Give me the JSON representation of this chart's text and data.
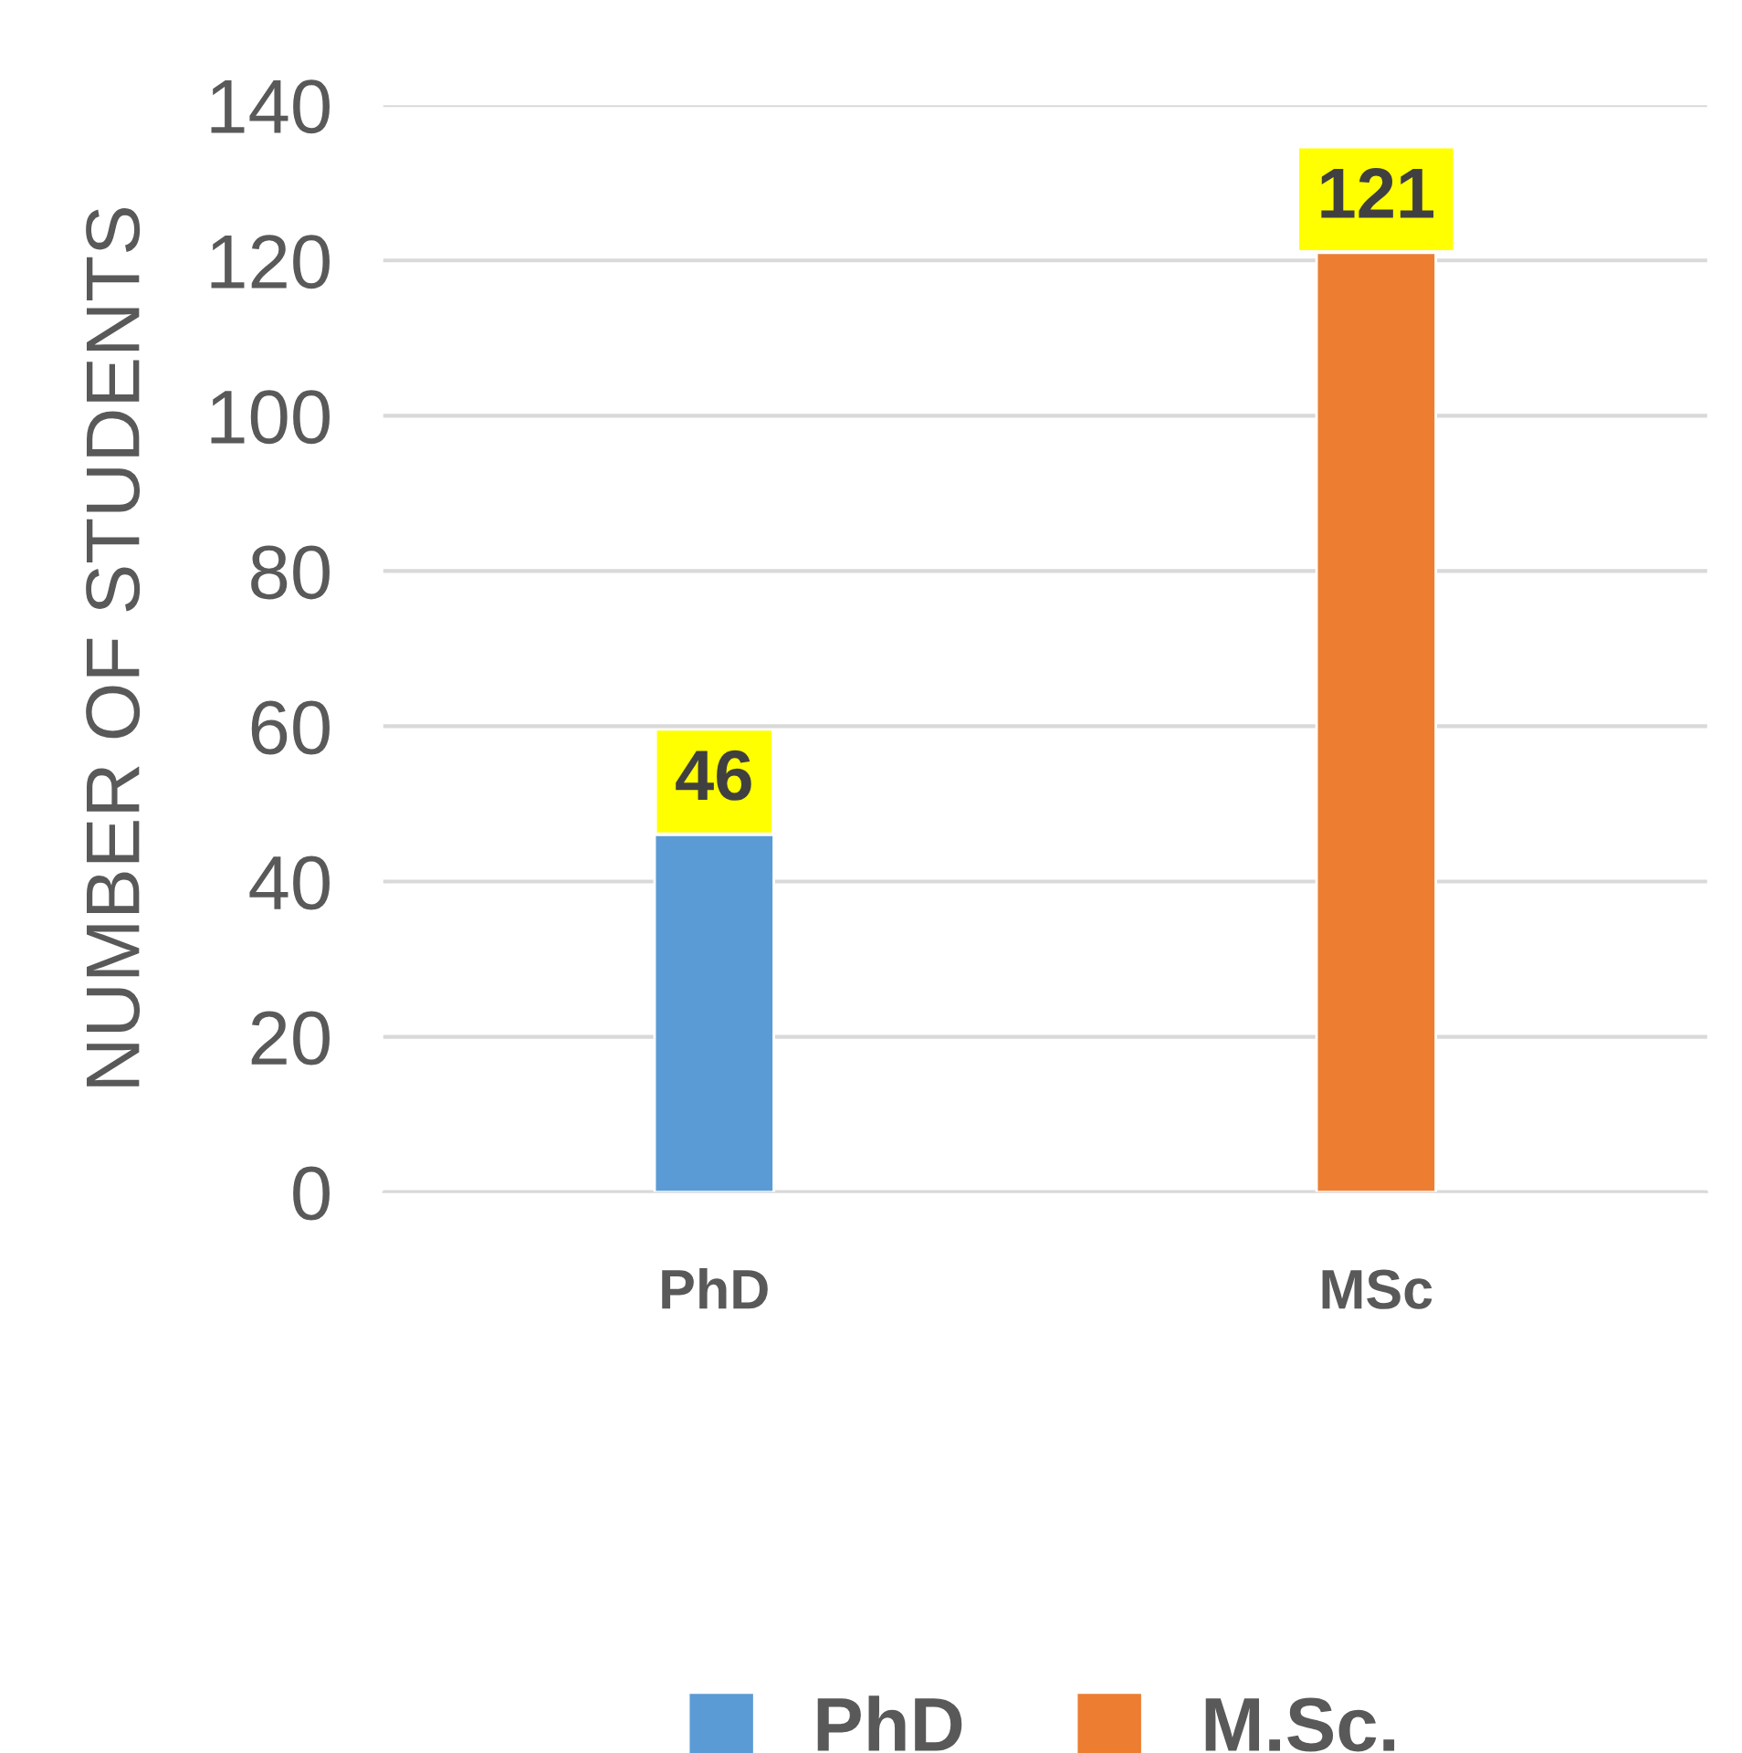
{
  "chart_data": {
    "type": "bar",
    "ylabel": "NUMBER OF STUDENTS",
    "categories": [
      "PhD",
      "MSc"
    ],
    "series": [
      {
        "name": "PhD",
        "color": "#5b9bd5",
        "values": [
          46,
          null
        ]
      },
      {
        "name": "M.Sc.",
        "color": "#ed7d31",
        "values": [
          null,
          121
        ]
      }
    ],
    "ylim": [
      0,
      140
    ],
    "yticks": [
      0,
      20,
      40,
      60,
      80,
      100,
      120,
      140
    ],
    "grid": "y",
    "legend": "bottom",
    "data_labels": true
  }
}
